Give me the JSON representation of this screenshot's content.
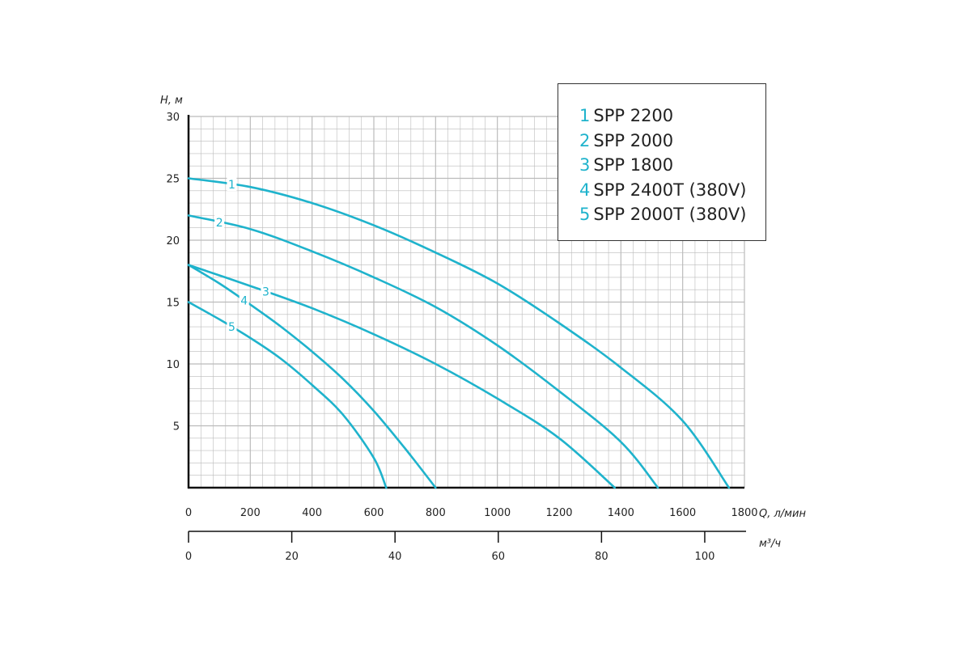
{
  "chart_data": {
    "type": "line",
    "x_primary": {
      "label": "Q, л/мин",
      "ticks": [
        0,
        200,
        400,
        600,
        800,
        1000,
        1200,
        1400,
        1600,
        1800
      ],
      "range": [
        0,
        1800
      ]
    },
    "x_secondary": {
      "label": "м³/ч",
      "ticks": [
        0,
        20,
        40,
        60,
        80,
        100
      ],
      "range": [
        0,
        108
      ]
    },
    "y": {
      "label": "H, м",
      "ticks": [
        5,
        10,
        15,
        20,
        25,
        30
      ],
      "range": [
        0,
        30
      ]
    },
    "grid": true,
    "legend_position": "top-right",
    "series": [
      {
        "id": "1",
        "name": "SPP 2200",
        "label": "1",
        "x": [
          0,
          200,
          400,
          600,
          800,
          1000,
          1200,
          1400,
          1600,
          1750
        ],
        "y": [
          25,
          24.3,
          23,
          21.2,
          19,
          16.5,
          13.3,
          9.7,
          5.4,
          0
        ]
      },
      {
        "id": "2",
        "name": "SPP 2000",
        "label": "2",
        "x": [
          0,
          200,
          400,
          600,
          800,
          1000,
          1200,
          1400,
          1520
        ],
        "y": [
          22,
          20.9,
          19.1,
          17,
          14.6,
          11.5,
          7.8,
          3.7,
          0
        ]
      },
      {
        "id": "3",
        "name": "SPP 1800",
        "label": "3",
        "x": [
          0,
          200,
          400,
          600,
          800,
          1000,
          1200,
          1380
        ],
        "y": [
          18,
          16.3,
          14.5,
          12.4,
          10,
          7.2,
          4,
          0
        ]
      },
      {
        "id": "4",
        "name": "SPP 2400T (380V)",
        "label": "4",
        "x": [
          0,
          100,
          200,
          300,
          400,
          500,
          600,
          700,
          800
        ],
        "y": [
          18,
          16.5,
          14.8,
          13,
          11,
          8.8,
          6.2,
          3.2,
          0
        ]
      },
      {
        "id": "5",
        "name": "SPP 2000T (380V)",
        "label": "5",
        "x": [
          0,
          100,
          200,
          300,
          400,
          500,
          600,
          640
        ],
        "y": [
          15,
          13.6,
          12.1,
          10.4,
          8.3,
          5.9,
          2.4,
          0
        ]
      }
    ],
    "colors": {
      "curve": "#1fb3cc",
      "grid": "#bbbbbb",
      "axis": "#111111",
      "text": "#222222"
    }
  },
  "legend": [
    {
      "num": "1",
      "text": "SPP 2200"
    },
    {
      "num": "2",
      "text": "SPP 2000"
    },
    {
      "num": "3",
      "text": "SPP 1800"
    },
    {
      "num": "4",
      "text": "SPP 2400T (380V)"
    },
    {
      "num": "5",
      "text": "SPP 2000T (380V)"
    }
  ]
}
